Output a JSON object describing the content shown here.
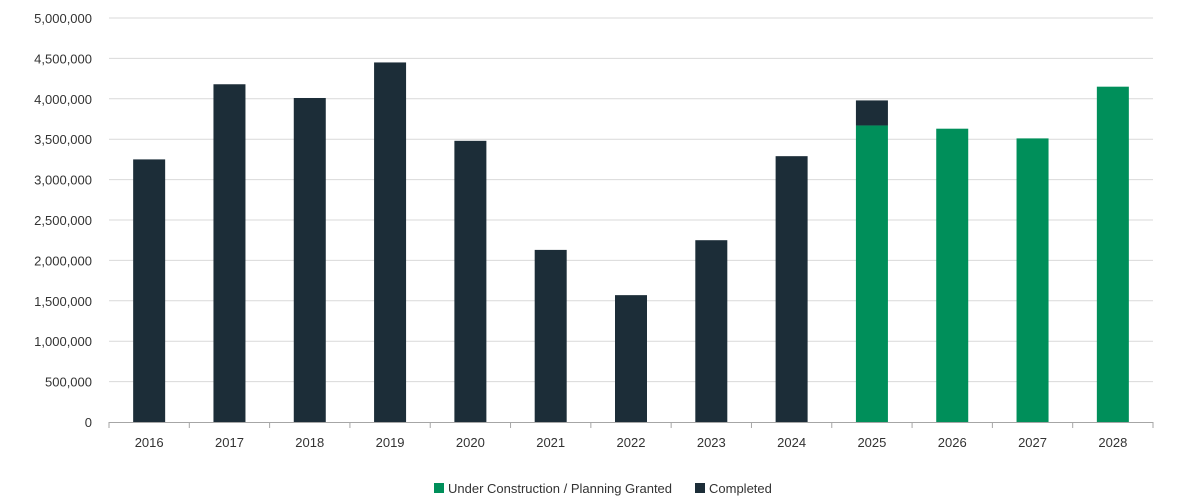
{
  "chart_data": {
    "type": "bar",
    "stacked": true,
    "categories": [
      "2016",
      "2017",
      "2018",
      "2019",
      "2020",
      "2021",
      "2022",
      "2023",
      "2024",
      "2025",
      "2026",
      "2027",
      "2028"
    ],
    "series": [
      {
        "name": "Under Construction / Planning Granted",
        "color": "#008f5a",
        "values": [
          0,
          0,
          0,
          0,
          0,
          0,
          0,
          0,
          0,
          3670000,
          3630000,
          3510000,
          4150000
        ]
      },
      {
        "name": "Completed",
        "color": "#1c2d38",
        "values": [
          3250000,
          4180000,
          4010000,
          4450000,
          3480000,
          2130000,
          1570000,
          2250000,
          3290000,
          310000,
          0,
          0,
          0
        ]
      }
    ],
    "y_ticks": [
      "0",
      "500,000",
      "1,000,000",
      "1,500,000",
      "2,000,000",
      "2,500,000",
      "3,000,000",
      "3,500,000",
      "4,000,000",
      "4,500,000",
      "5,000,000"
    ],
    "ylim": [
      0,
      5000000
    ],
    "grid": true,
    "gridline_color": "#d9d9d9",
    "axis_color": "#a6a6a6",
    "legend_position": "bottom-center",
    "title": "",
    "xlabel": "",
    "ylabel": ""
  }
}
